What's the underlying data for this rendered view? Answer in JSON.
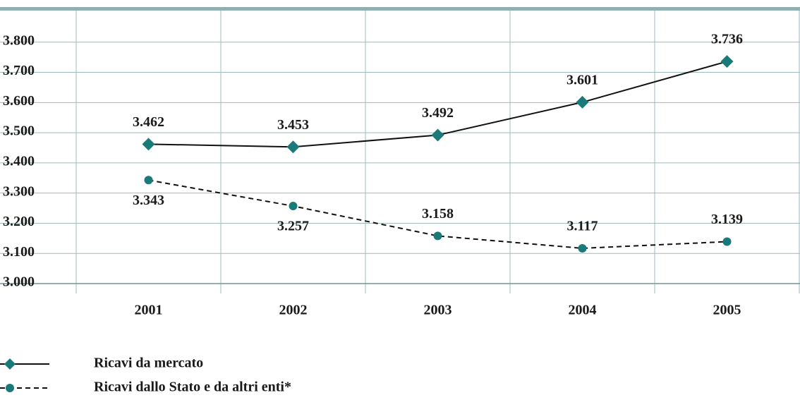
{
  "chart_data": {
    "type": "line",
    "categories": [
      "2001",
      "2002",
      "2003",
      "2004",
      "2005"
    ],
    "series": [
      {
        "name": "Ricavi da mercato",
        "color": "#1a7a7a",
        "marker": "diamond",
        "dash": "solid",
        "values": [
          3462,
          3453,
          3492,
          3601,
          3736
        ],
        "value_labels": [
          "3.462",
          "3.453",
          "3.492",
          "3.601",
          "3.736"
        ]
      },
      {
        "name": "Ricavi dallo Stato e da altri enti*",
        "color": "#1a7a7a",
        "marker": "circle",
        "dash": "dashed",
        "values": [
          3343,
          3257,
          3158,
          3117,
          3139
        ],
        "value_labels": [
          "3.343",
          "3.257",
          "3.158",
          "3.117",
          "3.139"
        ]
      }
    ],
    "ylim": [
      3000,
      3900
    ],
    "yticks": [
      {
        "value": 3000,
        "label": "3.000"
      },
      {
        "value": 3100,
        "label": "3.100"
      },
      {
        "value": 3200,
        "label": "3.200"
      },
      {
        "value": 3300,
        "label": "3.300"
      },
      {
        "value": 3400,
        "label": "3.400"
      },
      {
        "value": 3500,
        "label": "3.500"
      },
      {
        "value": 3600,
        "label": "3.600"
      },
      {
        "value": 3700,
        "label": "3.700"
      },
      {
        "value": 3800,
        "label": "3.800"
      }
    ],
    "grid": true
  }
}
